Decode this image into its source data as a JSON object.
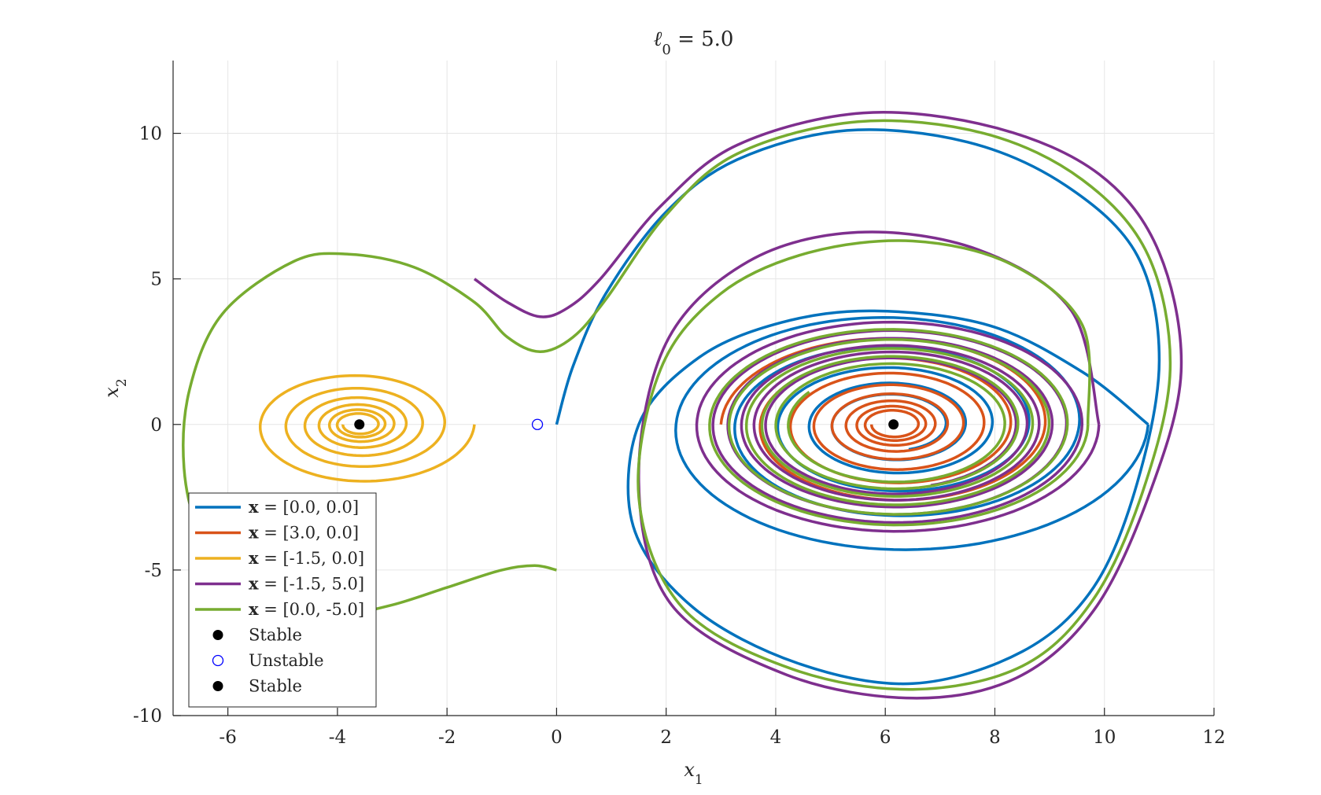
{
  "chart_data": {
    "type": "line",
    "title": "ℓ0 = 5.0",
    "title_parts": {
      "symbol": "ℓ",
      "subscript": "0",
      "rest": " = 5.0"
    },
    "xlabel": {
      "symbol": "x",
      "subscript": "1"
    },
    "ylabel": {
      "symbol": "x",
      "subscript": "2"
    },
    "xlim": [
      -7,
      12
    ],
    "ylim": [
      -10,
      12.5
    ],
    "xticks": [
      -6,
      -4,
      -2,
      0,
      2,
      4,
      6,
      8,
      10,
      12
    ],
    "yticks": [
      -10,
      -5,
      0,
      5,
      10
    ],
    "xtick_labels": [
      "-6",
      "-4",
      "-2",
      "0",
      "2",
      "4",
      "6",
      "8",
      "10",
      "12"
    ],
    "ytick_labels": [
      "-10",
      "-5",
      "0",
      "5",
      "10"
    ],
    "grid": true,
    "legend_position": "lower-left",
    "series": [
      {
        "name": "x = [0.0, 0.0]",
        "legend_prefix": "x",
        "legend_rest": " = [0.0, 0.0]",
        "color": "#0072BD",
        "start": [
          0.0,
          0.0
        ],
        "points": [
          [
            0,
            0
          ],
          [
            0.3,
            2
          ],
          [
            0.9,
            4.5
          ],
          [
            2.0,
            7.3
          ],
          [
            3.3,
            9.1
          ],
          [
            5.3,
            10.1
          ],
          [
            7.5,
            9.7
          ],
          [
            9.3,
            8.2
          ],
          [
            10.6,
            5.8
          ],
          [
            11.0,
            2.2
          ],
          [
            10.6,
            -2.0
          ],
          [
            9.8,
            -5.6
          ],
          [
            8.5,
            -7.8
          ],
          [
            6.5,
            -8.9
          ],
          [
            4.4,
            -8.2
          ],
          [
            2.5,
            -6.3
          ],
          [
            1.4,
            -3.5
          ],
          [
            1.5,
            0.0
          ],
          [
            2.6,
            2.3
          ],
          [
            4.1,
            3.5
          ],
          [
            5.8,
            3.9
          ],
          [
            7.9,
            3.4
          ],
          [
            9.6,
            1.8
          ],
          [
            10.8,
            0.0
          ]
        ],
        "equilibrium": [
          6.15,
          0
        ],
        "spiral": {
          "turns": 5.2,
          "r_outer": 3.8,
          "r_inner": 0.9
        }
      },
      {
        "name": "x = [3.0, 0.0]",
        "legend_prefix": "x",
        "legend_rest": " = [3.0, 0.0]",
        "color": "#D95319",
        "start": [
          3.0,
          0.0
        ],
        "points": [
          [
            3.0,
            0.0
          ]
        ],
        "equilibrium": [
          6.15,
          0
        ],
        "spiral": {
          "turns": 8.0,
          "r_outer": 3.15,
          "r_inner": 0.4
        }
      },
      {
        "name": "x = [-1.5, 0.0]",
        "legend_prefix": "x",
        "legend_rest": " = [-1.5, 0.0]",
        "color": "#EDB120",
        "start": [
          -1.5,
          0.0
        ],
        "points": [
          [
            -1.5,
            0.0
          ]
        ],
        "equilibrium": [
          -3.6,
          0
        ],
        "spiral": {
          "turns": 6.5,
          "r_outer": 2.1,
          "r_inner": 0.3
        }
      },
      {
        "name": "x = [-1.5, 5.0]",
        "legend_prefix": "x",
        "legend_rest": " = [-1.5, 5.0]",
        "color": "#7E2F8E",
        "start": [
          -1.5,
          5.0
        ],
        "points": [
          [
            -1.5,
            5.0
          ],
          [
            -0.9,
            4.2
          ],
          [
            -0.3,
            3.7
          ],
          [
            0.2,
            4.0
          ],
          [
            0.8,
            5.0
          ],
          [
            1.9,
            7.5
          ],
          [
            3.3,
            9.6
          ],
          [
            5.6,
            10.7
          ],
          [
            8.0,
            10.2
          ],
          [
            9.9,
            8.6
          ],
          [
            11.0,
            5.9
          ],
          [
            11.4,
            1.8
          ],
          [
            10.8,
            -2.5
          ],
          [
            9.8,
            -6.4
          ],
          [
            8.4,
            -8.7
          ],
          [
            6.5,
            -9.4
          ],
          [
            4.2,
            -8.6
          ],
          [
            2.1,
            -6.2
          ],
          [
            1.5,
            -2.0
          ],
          [
            2.0,
            2.8
          ],
          [
            3.5,
            5.6
          ],
          [
            5.5,
            6.6
          ],
          [
            7.7,
            6.0
          ],
          [
            9.4,
            3.9
          ],
          [
            9.9,
            0.0
          ]
        ],
        "equilibrium": [
          6.15,
          0
        ],
        "spiral": {
          "turns": 6.2,
          "r_outer": 3.75,
          "r_inner": 2.2
        }
      },
      {
        "name": "x = [0.0, -5.0]",
        "legend_prefix": "x",
        "legend_rest": " = [0.0, -5.0]",
        "color": "#77AC30",
        "start": [
          0.0,
          -5.0
        ],
        "points": [
          [
            0,
            -5.0
          ],
          [
            -0.4,
            -4.85
          ],
          [
            -1.0,
            -5.0
          ],
          [
            -2.0,
            -5.6
          ],
          [
            -3.0,
            -6.2
          ],
          [
            -4.0,
            -6.55
          ],
          [
            -5.0,
            -6.4
          ],
          [
            -5.8,
            -5.6
          ],
          [
            -6.5,
            -3.8
          ],
          [
            -6.8,
            -1.5
          ],
          [
            -6.7,
            1.2
          ],
          [
            -6.1,
            3.8
          ],
          [
            -4.8,
            5.6
          ],
          [
            -3.8,
            5.85
          ],
          [
            -2.6,
            5.4
          ],
          [
            -1.5,
            4.2
          ],
          [
            -0.9,
            3.0
          ],
          [
            -0.3,
            2.5
          ],
          [
            0.3,
            3.0
          ],
          [
            0.9,
            4.3
          ],
          [
            2.0,
            7.2
          ],
          [
            3.3,
            9.3
          ],
          [
            5.5,
            10.4
          ],
          [
            7.8,
            10.0
          ],
          [
            9.6,
            8.4
          ],
          [
            10.8,
            5.8
          ],
          [
            11.2,
            1.9
          ],
          [
            10.7,
            -2.3
          ],
          [
            9.8,
            -6.0
          ],
          [
            8.5,
            -8.3
          ],
          [
            6.5,
            -9.1
          ],
          [
            4.3,
            -8.4
          ],
          [
            2.3,
            -6.3
          ],
          [
            1.5,
            -2.5
          ],
          [
            1.9,
            1.9
          ],
          [
            3.0,
            4.5
          ],
          [
            4.6,
            5.9
          ],
          [
            6.5,
            6.3
          ],
          [
            8.3,
            5.5
          ],
          [
            9.6,
            3.4
          ],
          [
            9.7,
            0.0
          ]
        ],
        "equilibrium": [
          6.15,
          0
        ],
        "spiral": {
          "turns": 5.6,
          "r_outer": 3.6,
          "r_inner": 1.9
        }
      }
    ],
    "markers": [
      {
        "name": "Stable",
        "type": "filled",
        "color": "#000000",
        "x": -3.6,
        "y": 0
      },
      {
        "name": "Unstable",
        "type": "open",
        "color": "#0000FF",
        "x": -0.35,
        "y": 0
      },
      {
        "name": "Stable",
        "type": "filled",
        "color": "#000000",
        "x": 6.15,
        "y": 0
      }
    ]
  }
}
